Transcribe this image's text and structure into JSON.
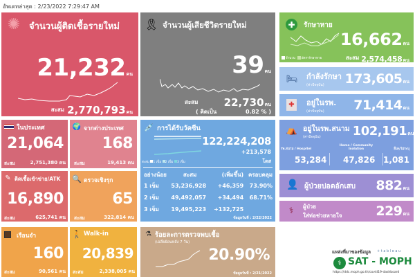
{
  "header": {
    "last_update": "อัพเดทล่าสุด : 2/23/2022 7:29:47 AM"
  },
  "unit": "คน",
  "cum": "สะสม",
  "new_cases": {
    "title": "จำนวนผู้ติดเชื้อรายใหม่",
    "value": "21,232",
    "cumulative": "2,770,793",
    "color": "#d9576a"
  },
  "deaths": {
    "title": "จำนวนผู้เสียชีวิตรายใหม่",
    "value": "39",
    "cumulative": "22,730",
    "pct_label": "( คิดเป็น",
    "pct": "0.82 % )",
    "color": "#7f7f7f"
  },
  "recovered": {
    "title": "รักษาหาย",
    "value": "16,662",
    "cumulative": "2,574,458",
    "legend": [
      "จำนวน",
      "อัตรารักษาหาย"
    ],
    "color": "#86c25a"
  },
  "treating": {
    "title": "กำลังรักษา",
    "sub": "(ค่าปัจจุบัน)",
    "value": "173,605"
  },
  "hospital": {
    "title": "อยู่ในรพ.",
    "sub": "(ค่าปัจจุบัน)",
    "value": "71,414"
  },
  "domestic": {
    "title": "ในประเทศ",
    "value": "21,064",
    "cumulative": "2,751,380"
  },
  "imported": {
    "title": "จากต่างประเทศ",
    "value": "168",
    "cumulative": "19,413"
  },
  "atk": {
    "title": "ติดเชื้อเข้าข่าย/ATK",
    "value": "16,890",
    "cumulative": "625,741"
  },
  "active": {
    "title": "ตรวจเชิงรุก",
    "value": "65",
    "cumulative": "322,814"
  },
  "vaccine": {
    "title": "การได้รับวัคซีน",
    "total": "122,224,208",
    "increase": "+213,578",
    "unit": "โดส",
    "legend": [
      "สะสม",
      "1 เข็ม",
      "2 เข็ม",
      "3 เข็ม"
    ],
    "headers": [
      "อย่างน้อย",
      "สะสม",
      "(เพิ่มขึ้น)",
      "ครอบคลุม"
    ],
    "rows": [
      [
        "1 เข็ม",
        "53,236,928",
        "+46,359",
        "73.90%"
      ],
      [
        "2 เข็ม",
        "49,492,057",
        "+34,494",
        "68.71%"
      ],
      [
        "3 เข็ม",
        "19,495,223",
        "+132,725",
        ""
      ]
    ],
    "date": "ข้อมูลวันที่ : 2/22/2022"
  },
  "field": {
    "title": "อยู่ในรพ.สนาม",
    "sub": "(ค่าปัจจุบัน)",
    "value": "102,191",
    "cols": [
      {
        "label": "รพ.สนาม / Hospitel",
        "value": "53,284"
      },
      {
        "label": "Home / Community Isolation",
        "value": "47,826"
      },
      {
        "label": "อื่นๆ/ไม่ระบุ",
        "value": "1,081"
      }
    ]
  },
  "pneumonia": {
    "title": "ผู้ป่วยปอดอักเสบ",
    "value": "882"
  },
  "ventilator": {
    "title1": "ผู้ป่วย",
    "title2": "ใส่ท่อช่วยหายใจ",
    "value": "229"
  },
  "prison": {
    "title": "เรือนจำ",
    "value": "160",
    "cumulative": "90,561"
  },
  "walkin": {
    "title": "Walk-in",
    "value": "20,839",
    "cumulative": "2,338,005"
  },
  "positivity": {
    "title": "ร้อยละการตรวจพบเชื้อ",
    "sub": "(เฉลี่ยย้อนหลัง 7 วัน)",
    "value": "20.90%",
    "date": "ข้อมูลวันที่ : 2/21/2022"
  },
  "source": {
    "label": "แหล่งที่มาของข้อมูล",
    "tableau": "+ t a b l e a u",
    "brand": "SAT - MOPH",
    "url": "https://ddc.moph.go.th/covid19-dashboard"
  }
}
